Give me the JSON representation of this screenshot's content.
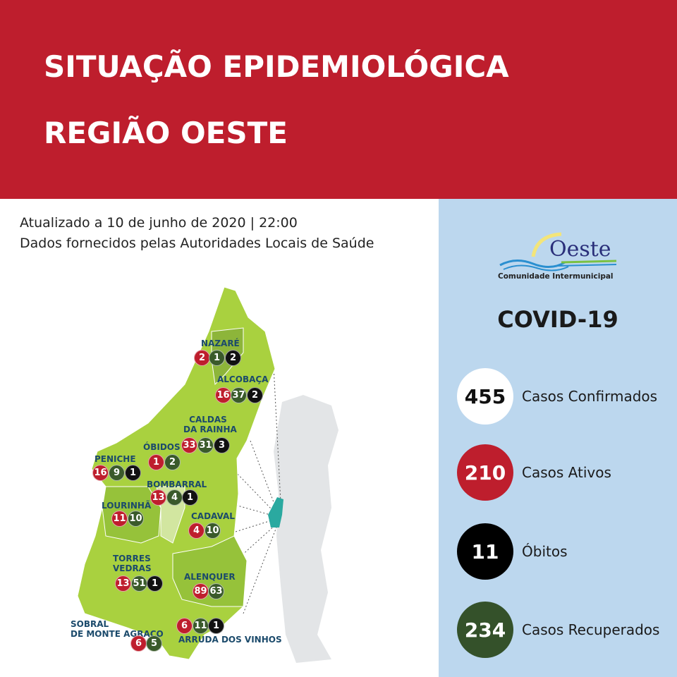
{
  "header": {
    "title_line1": "SITUAÇÃO EPIDEMIOLÓGICA",
    "title_line2": "REGIÃO OESTE"
  },
  "info": {
    "updated": "Atualizado a 10 de junho de 2020 | 22:00",
    "source": "Dados fornecidos pelas Autoridades Locais de Saúde"
  },
  "logo": {
    "name": "Oeste",
    "subtitle": "Comunidade Intermunicipal"
  },
  "colors": {
    "header": "#be1e2d",
    "side_panel": "#bcd7ee",
    "active": "#be1e2d",
    "recovered": "#3a5a2a",
    "deaths": "#111111",
    "confirmed": "#ffffff",
    "map_green": "#a9d13f",
    "highlight": "#2aa9a0"
  },
  "covid_title": "COVID-19",
  "stats": [
    {
      "value": "455",
      "label": "Casos Confirmados"
    },
    {
      "value": "210",
      "label": "Casos Ativos"
    },
    {
      "value": "11",
      "label": "Óbitos"
    },
    {
      "value": "234",
      "label": "Casos Recuperados"
    }
  ],
  "municipalities": [
    {
      "name": "NAZARÉ",
      "active": "2",
      "recovered": "1",
      "deaths": "2"
    },
    {
      "name": "ALCOBAÇA",
      "active": "16",
      "recovered": "37",
      "deaths": "2"
    },
    {
      "name_line1": "CALDAS",
      "name_line2": "DA RAINHA",
      "active": "33",
      "recovered": "31",
      "deaths": "3"
    },
    {
      "name": "ÓBIDOS",
      "active": "1",
      "recovered": "2"
    },
    {
      "name": "PENICHE",
      "active": "16",
      "recovered": "9",
      "deaths": "1"
    },
    {
      "name": "BOMBARRAL",
      "active": "13",
      "recovered": "4",
      "deaths": "1"
    },
    {
      "name": "LOURINHÃ",
      "active": "11",
      "recovered": "10"
    },
    {
      "name": "CADAVAL",
      "active": "4",
      "recovered": "10"
    },
    {
      "name_line1": "TORRES",
      "name_line2": "VEDRAS",
      "active": "13",
      "recovered": "51",
      "deaths": "1"
    },
    {
      "name": "ALENQUER",
      "active": "89",
      "recovered": "63"
    },
    {
      "name": "ARRUDA DOS VINHOS",
      "active": "6",
      "recovered": "11",
      "deaths": "1"
    },
    {
      "name_line1": "SOBRAL",
      "name_line2": "DE MONTE AGRAÇO",
      "active": "6",
      "recovered": "5"
    }
  ]
}
